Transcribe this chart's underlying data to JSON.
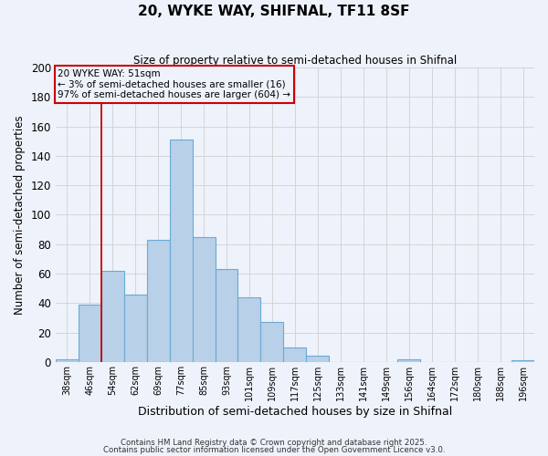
{
  "title": "20, WYKE WAY, SHIFNAL, TF11 8SF",
  "subtitle": "Size of property relative to semi-detached houses in Shifnal",
  "xlabel": "Distribution of semi-detached houses by size in Shifnal",
  "ylabel": "Number of semi-detached properties",
  "bar_labels": [
    "38sqm",
    "46sqm",
    "54sqm",
    "62sqm",
    "69sqm",
    "77sqm",
    "85sqm",
    "93sqm",
    "101sqm",
    "109sqm",
    "117sqm",
    "125sqm",
    "133sqm",
    "141sqm",
    "149sqm",
    "156sqm",
    "164sqm",
    "172sqm",
    "180sqm",
    "188sqm",
    "196sqm"
  ],
  "bar_values": [
    2,
    39,
    62,
    46,
    83,
    151,
    85,
    63,
    44,
    27,
    10,
    4,
    0,
    0,
    0,
    2,
    0,
    0,
    0,
    0,
    1
  ],
  "bar_color": "#b8d0e8",
  "bar_edge_color": "#6aaad4",
  "background_color": "#eef2fb",
  "grid_color": "#d0d0d0",
  "vline_color": "#cc0000",
  "vline_x_index": 2,
  "annotation_title": "20 WYKE WAY: 51sqm",
  "annotation_line1": "← 3% of semi-detached houses are smaller (16)",
  "annotation_line2": "97% of semi-detached houses are larger (604) →",
  "annotation_box_color": "#cc0000",
  "ylim": [
    0,
    200
  ],
  "yticks": [
    0,
    20,
    40,
    60,
    80,
    100,
    120,
    140,
    160,
    180,
    200
  ],
  "footnote1": "Contains HM Land Registry data © Crown copyright and database right 2025.",
  "footnote2": "Contains public sector information licensed under the Open Government Licence v3.0."
}
